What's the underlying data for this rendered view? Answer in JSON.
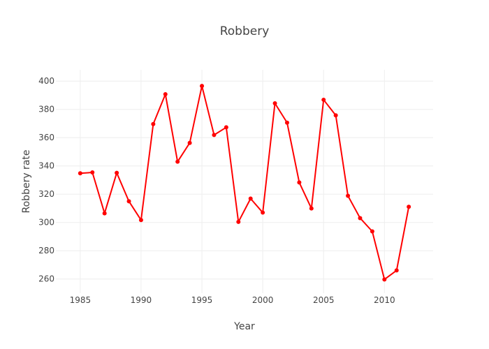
{
  "chart_data": {
    "type": "line",
    "title": "Robbery",
    "xlabel": "Year",
    "ylabel": "Robbery rate",
    "xlim": [
      1983,
      2014
    ],
    "ylim": [
      250,
      408
    ],
    "xticks": [
      1985,
      1990,
      1995,
      2000,
      2005,
      2010
    ],
    "yticks": [
      260,
      280,
      300,
      320,
      340,
      360,
      380,
      400
    ],
    "grid": true,
    "color": "#ff0000",
    "series": [
      {
        "x": [
          1985,
          1986,
          1987,
          1988,
          1989,
          1990,
          1991,
          1992,
          1993,
          1994,
          1995,
          1996,
          1997,
          1998,
          1999,
          2000,
          2001,
          2002,
          2003,
          2004,
          2005,
          2006,
          2007,
          2008,
          2009,
          2010,
          2011,
          2012
        ],
        "y": [
          334.8,
          335.4,
          306.5,
          335.1,
          315.0,
          301.7,
          369.6,
          390.7,
          343.0,
          356.3,
          396.6,
          361.9,
          367.3,
          300.4,
          316.9,
          307.0,
          384.3,
          370.6,
          328.3,
          309.9,
          386.8,
          375.8,
          318.9,
          303.1,
          293.7,
          259.7,
          266.1,
          311.1
        ]
      }
    ]
  }
}
